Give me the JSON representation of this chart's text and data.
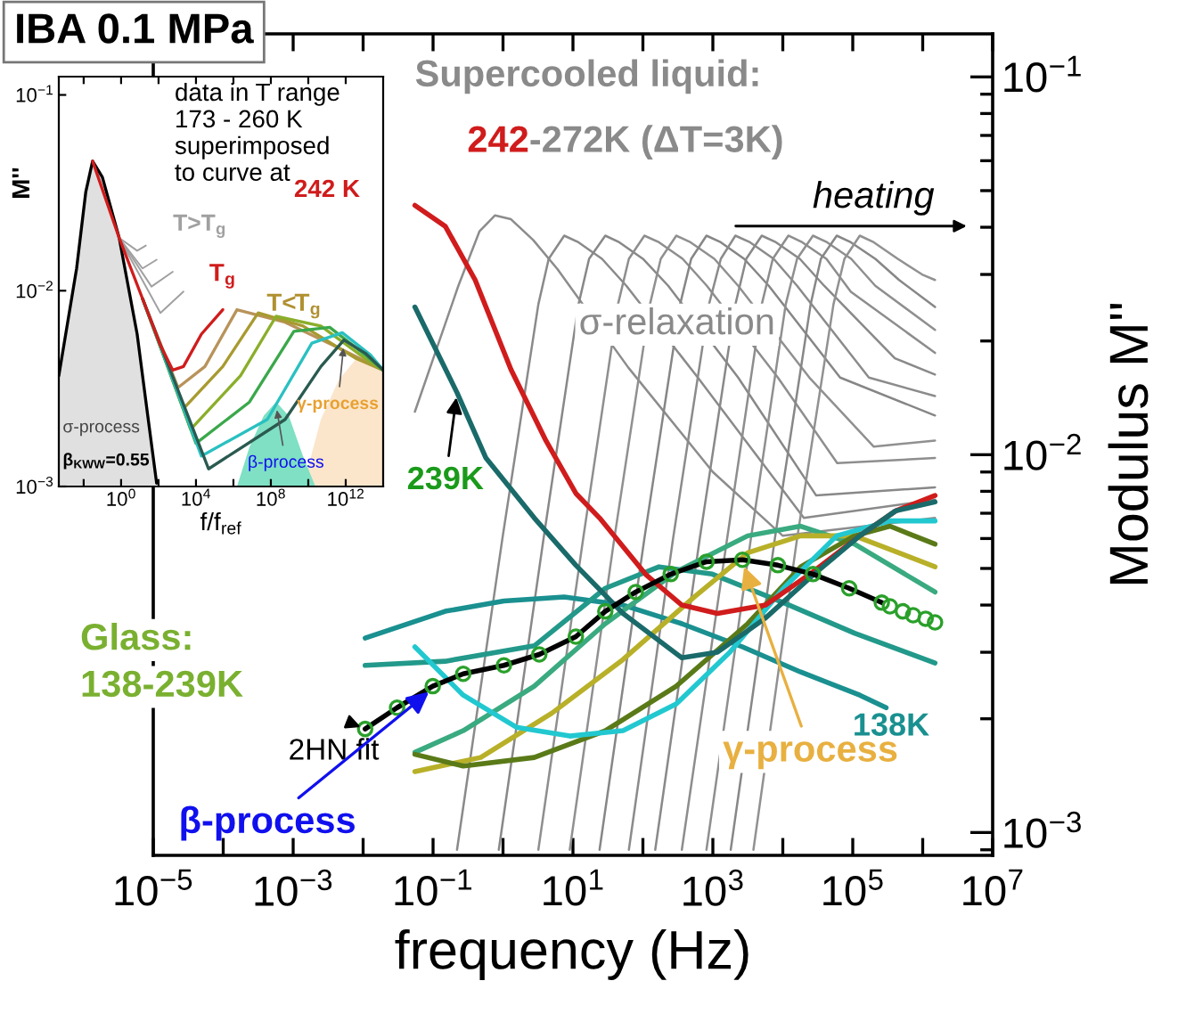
{
  "chart_data": [
    {
      "type": "line",
      "title": "IBA 0.1 MPa",
      "xlabel": "frequency (Hz)",
      "ylabel": "Modulus M''",
      "log": "xy",
      "grid": false,
      "legend": false,
      "xlim": [
        1e-05,
        10000000.0
      ],
      "ylim": [
        0.00087,
        0.13
      ],
      "xticks": [
        {
          "value": 1e-05,
          "label": "10$^{−5}$"
        },
        {
          "value": 0.0001,
          "label": null
        },
        {
          "value": 0.001,
          "label": "10$^{−3}$"
        },
        {
          "value": 0.01,
          "label": null
        },
        {
          "value": 0.1,
          "label": "10$^{−1}$"
        },
        {
          "value": 1,
          "label": null
        },
        {
          "value": 10,
          "label": "10$^{1}$"
        },
        {
          "value": 100,
          "label": null
        },
        {
          "value": 1000,
          "label": "10$^{3}$"
        },
        {
          "value": 10000.0,
          "label": null
        },
        {
          "value": 100000.0,
          "label": "10$^{5}$"
        },
        {
          "value": 1000000.0,
          "label": null
        },
        {
          "value": 10000000.0,
          "label": "10$^{7}$"
        }
      ],
      "yticks": [
        {
          "value": 0.001,
          "label": "10$^{−3}$"
        },
        {
          "value": 0.01,
          "label": "10$^{−2}$"
        },
        {
          "value": 0.1,
          "label": "10$^{−1}$"
        }
      ],
      "annotations": [
        "Supercooled liquid:",
        "242",
        "-272K (ΔT=3K)",
        "heating",
        "σ-relaxation",
        {
          "text": "239K",
          "x": 0.22,
          "y": 0.0146
        },
        "Glass:",
        "138-239K",
        {
          "text": "2HN fit",
          "x": 0.0107,
          "y": 0.00188
        },
        {
          "text": "β-process",
          "x": 0.099,
          "y": 0.0024
        },
        {
          "text": "γ-process",
          "x": 2650,
          "y": 0.0052
        },
        "138K"
      ],
      "series": [
        {
          "color": "#8c8c8c",
          "x": [
            0.055,
            0.23,
            0.46,
            0.77,
            1.3,
            2.7,
            6,
            62,
            1000,
            10000,
            1500000.0
          ],
          "values": [
            0.013,
            0.028,
            0.039,
            0.043,
            0.042,
            0.037,
            0.031,
            0.017,
            0.009,
            0.0061,
            0.0068
          ]
        },
        {
          "color": "#8a8a8a",
          "x": [
            0.22,
            0.98,
            3.2,
            4.5,
            7.5,
            12,
            26,
            58,
            610,
            20000,
            1500000.0
          ],
          "values": [
            0.0009,
            0.006,
            0.025,
            0.033,
            0.038,
            0.0365,
            0.033,
            0.028,
            0.016,
            0.0068,
            0.0076
          ]
        },
        {
          "color": "#888888",
          "x": [
            0.87,
            3.8,
            12,
            17,
            29,
            46,
            100,
            230,
            2300,
            30000,
            1500000.0
          ],
          "values": [
            0.0009,
            0.006,
            0.025,
            0.033,
            0.038,
            0.0365,
            0.033,
            0.028,
            0.016,
            0.0078,
            0.0082
          ]
        },
        {
          "color": "#8e8e8e",
          "x": [
            3.2,
            14,
            44,
            63,
            105,
            170,
            370,
            820,
            8500,
            60000,
            1500000.0
          ],
          "values": [
            0.0009,
            0.006,
            0.025,
            0.033,
            0.038,
            0.0365,
            0.033,
            0.028,
            0.016,
            0.0095,
            0.0098
          ]
        },
        {
          "color": "#909090",
          "x": [
            9,
            39,
            126,
            180,
            300,
            480,
            1050,
            2300,
            24000,
            200000,
            1500000.0
          ],
          "values": [
            0.0009,
            0.006,
            0.025,
            0.033,
            0.038,
            0.0365,
            0.033,
            0.028,
            0.016,
            0.0105,
            0.0109
          ]
        },
        {
          "color": "#868686",
          "x": [
            24,
            105,
            340,
            490,
            810,
            1300,
            2800,
            6300,
            66000,
            1500000.0
          ],
          "values": [
            0.0009,
            0.006,
            0.025,
            0.033,
            0.038,
            0.0365,
            0.033,
            0.028,
            0.016,
            0.0127
          ]
        },
        {
          "color": "#8b8b8b",
          "x": [
            63,
            270,
            880,
            1300,
            2100,
            3400,
            7400,
            16000,
            170000,
            1500000.0
          ],
          "values": [
            0.0009,
            0.006,
            0.025,
            0.033,
            0.038,
            0.0365,
            0.033,
            0.028,
            0.016,
            0.0143
          ]
        },
        {
          "color": "#898989",
          "x": [
            150,
            650,
            2100,
            3000,
            5000,
            8000,
            17500,
            39000,
            400000,
            1500000.0
          ],
          "values": [
            0.0009,
            0.006,
            0.025,
            0.033,
            0.038,
            0.0365,
            0.033,
            0.028,
            0.018,
            0.0163
          ]
        },
        {
          "color": "#8d8d8d",
          "x": [
            360,
            1600,
            5000,
            7200,
            12000,
            19000,
            42000,
            94000,
            1500000.0
          ],
          "values": [
            0.0009,
            0.006,
            0.025,
            0.033,
            0.038,
            0.0365,
            0.033,
            0.027,
            0.0186
          ]
        },
        {
          "color": "#8f8f8f",
          "x": [
            810,
            3500,
            11000,
            16000,
            27000,
            43000,
            95000,
            210000,
            1500000.0
          ],
          "values": [
            0.0009,
            0.006,
            0.025,
            0.033,
            0.038,
            0.0365,
            0.033,
            0.028,
            0.0214
          ]
        },
        {
          "color": "#878787",
          "x": [
            1800,
            7700,
            25000,
            35000,
            59000,
            94000,
            210000,
            460000,
            1500000.0
          ],
          "values": [
            0.0009,
            0.006,
            0.025,
            0.033,
            0.038,
            0.0365,
            0.033,
            0.029,
            0.0246
          ]
        },
        {
          "color": "#919191",
          "x": [
            3800,
            16000,
            53000,
            76000,
            126000,
            200000,
            440000,
            980000,
            1500000.0
          ],
          "values": [
            0.0009,
            0.006,
            0.025,
            0.033,
            0.038,
            0.0365,
            0.033,
            0.03,
            0.029
          ]
        },
        {
          "color": "#1a9090",
          "x": [
            0.0107,
            0.149,
            1.03,
            7.5,
            52,
            360,
            2650,
            18000,
            126000,
            300000
          ],
          "values": [
            0.00327,
            0.00385,
            0.0041,
            0.0042,
            0.004,
            0.00357,
            0.0031,
            0.00266,
            0.00231,
            0.00214
          ]
        },
        {
          "color": "#22998a",
          "x": [
            0.0107,
            0.149,
            2.8,
            29,
            170,
            980,
            10200,
            106000,
            1500000.0
          ],
          "values": [
            0.00277,
            0.00284,
            0.00312,
            0.00443,
            0.00505,
            0.00483,
            0.00406,
            0.00337,
            0.00281
          ]
        },
        {
          "color": "#3aaa80",
          "x": [
            0.055,
            0.27,
            2.8,
            29,
            300,
            3150,
            18000,
            106000,
            1500000.0
          ],
          "values": [
            0.00163,
            0.00186,
            0.00244,
            0.00357,
            0.0049,
            0.0061,
            0.00647,
            0.0058,
            0.00433
          ]
        },
        {
          "color": "#b8b028",
          "x": [
            0.055,
            0.48,
            5.0,
            52,
            540,
            3150,
            18000,
            106000,
            1500000.0
          ],
          "values": [
            0.00145,
            0.00158,
            0.00207,
            0.00287,
            0.0042,
            0.0055,
            0.0061,
            0.0061,
            0.00505
          ]
        },
        {
          "color": "#5a7a18",
          "x": [
            0.055,
            0.27,
            2.8,
            29,
            300,
            3150,
            18000,
            106000,
            340000,
            1500000.0
          ],
          "values": [
            0.00161,
            0.0015,
            0.00158,
            0.00186,
            0.00244,
            0.00357,
            0.00505,
            0.0061,
            0.00647,
            0.0058
          ]
        },
        {
          "color": "#22c8d0",
          "x": [
            0.055,
            0.27,
            1.55,
            9.0,
            52,
            300,
            1750,
            10200,
            59000,
            340000,
            1500000.0
          ],
          "values": [
            0.0031,
            0.00231,
            0.0019,
            0.0018,
            0.00186,
            0.00219,
            0.003,
            0.00443,
            0.0061,
            0.00668,
            0.00668
          ]
        },
        {
          "color": "#d01c1c",
          "x": [
            0.055,
            0.15,
            0.4,
            1.3,
            4.1,
            11,
            24,
            112,
            360,
            1160,
            5700,
            27000,
            126000,
            410000,
            1500000.0
          ],
          "values": [
            0.0457,
            0.0402,
            0.029,
            0.0168,
            0.0109,
            0.0079,
            0.0068,
            0.0048,
            0.004,
            0.0038,
            0.004,
            0.0049,
            0.0061,
            0.0071,
            0.0078
          ]
        },
        {
          "color": "#1a6a6a",
          "x": [
            0.055,
            0.22,
            0.57,
            2.8,
            11,
            52,
            360,
            1160,
            5700,
            27000,
            126000,
            410000,
            1500000.0
          ],
          "values": [
            0.0246,
            0.0146,
            0.0098,
            0.0068,
            0.0051,
            0.0038,
            0.0029,
            0.003,
            0.0037,
            0.0048,
            0.0061,
            0.0071,
            0.0075
          ]
        },
        {
          "type": "scatter",
          "marker": "circle",
          "color": "#2aa02a",
          "x": [
            0.0107,
            0.0306,
            0.099,
            0.27,
            1.03,
            3.3,
            11,
            29,
            79,
            250,
            810,
            2650,
            8500,
            27000,
            89000,
            260000,
            340000,
            520000,
            730000,
            1100000.0,
            1500000.0
          ],
          "values": [
            0.00188,
            0.00214,
            0.00244,
            0.00263,
            0.00277,
            0.00296,
            0.0033,
            0.00385,
            0.00433,
            0.00483,
            0.00521,
            0.00527,
            0.0051,
            0.00483,
            0.00443,
            0.00406,
            0.00397,
            0.00385,
            0.00376,
            0.00368,
            0.0036
          ]
        },
        {
          "color": "#000000",
          "x": [
            0.0107,
            0.0306,
            0.099,
            0.27,
            1.03,
            3.3,
            11,
            29,
            79,
            250,
            810,
            2650,
            8500,
            27000,
            89000,
            260000
          ],
          "values": [
            0.00188,
            0.00214,
            0.00244,
            0.00263,
            0.00277,
            0.00296,
            0.0033,
            0.00385,
            0.00433,
            0.00483,
            0.00521,
            0.00527,
            0.0051,
            0.00483,
            0.00443,
            0.00406
          ]
        }
      ]
    },
    {
      "type": "line",
      "xlabel": "f/f$_{ref}$",
      "ylabel": "M''",
      "log": "xy",
      "grid": false,
      "legend": false,
      "xlim": [
        0.00047,
        100000000000000.0
      ],
      "ylim": [
        0.001,
        0.124
      ],
      "xticks": [
        {
          "value": 0.01,
          "label": null
        },
        {
          "value": 1,
          "label": "10$^{0}$"
        },
        {
          "value": 100,
          "label": null
        },
        {
          "value": 10000.0,
          "label": "10$^{4}$"
        },
        {
          "value": 1000000.0,
          "label": null
        },
        {
          "value": 100000000.0,
          "label": "10$^{8}$"
        },
        {
          "value": 10000000000.0,
          "label": null
        },
        {
          "value": 1000000000000.0,
          "label": "10$^{12}$"
        }
      ],
      "yticks": [
        {
          "value": 0.001,
          "label": "10$^{−3}$"
        },
        {
          "value": 0.01,
          "label": "10$^{−2}$"
        },
        {
          "value": 0.1,
          "label": "10$^{−1}$"
        }
      ],
      "annotations": [
        "data in T range\n173 - 260 K\nsuperimposed\nto curve at",
        "242 K",
        "T>T$_{g}$",
        "T$_{g}$",
        "T<T$_{g}$",
        "σ-process",
        "β$_{KWW}$=0.55",
        {
          "text": "β-process",
          "x": 190000000.0,
          "y": 0.0026
        },
        {
          "text": "γ-process",
          "x": 800000000000.0,
          "y": 0.0054
        }
      ],
      "series": [
        {
          "type": "area",
          "color": "#fbe6cc",
          "x": [
            5200000000.0,
            47000000000.0,
            420000000000.0,
            3700000000000.0,
            100000000000000.0
          ],
          "values": [
            0.001,
            0.0022,
            0.0035,
            0.0045,
            0.00393
          ]
        },
        {
          "type": "area",
          "color": "#7fe0c4",
          "x": [
            1550000.0,
            7200000.0,
            42000000.0,
            190000000.0,
            900000000.0,
            5200000000.0,
            24000000000.0
          ],
          "values": [
            0.001,
            0.00159,
            0.0023,
            0.0027,
            0.0023,
            0.00143,
            0.001
          ]
        },
        {
          "color": "#000000",
          "x": [
            0.00047,
            0.0042,
            0.013,
            0.03,
            0.1,
            0.79,
            7.2,
            27,
            79
          ],
          "values": [
            0.00368,
            0.013,
            0.032,
            0.0459,
            0.038,
            0.0186,
            0.006,
            0.00227,
            0.00104
          ],
          "lower": [
            0.001,
            0.001,
            0.001,
            0.001,
            0.001,
            0.001,
            0.001,
            0.001,
            0.001
          ],
          "upper": [
            0.00368,
            0.013,
            0.032,
            0.0459,
            0.038,
            0.0186,
            0.006,
            0.00227,
            0.00104
          ]
        },
        {
          "color": "#a0a0a0",
          "x": [
            0.79,
            7.2,
            21
          ],
          "values": [
            0.0186,
            0.016,
            0.017
          ]
        },
        {
          "color": "#a0a0a0",
          "x": [
            0.79,
            14,
            79
          ],
          "values": [
            0.0186,
            0.013,
            0.0144
          ]
        },
        {
          "color": "#a0a0a0",
          "x": [
            0.79,
            42,
            575
          ],
          "values": [
            0.0186,
            0.0105,
            0.0125
          ]
        },
        {
          "color": "#a0a0a0",
          "x": [
            0.79,
            126,
            2140
          ],
          "values": [
            0.0186,
            0.0077,
            0.0099
          ]
        },
        {
          "color": "#b8935a",
          "x": [
            14,
            1100,
            30000,
            1550000.0,
            580000000.0,
            420000000000.0,
            100000000000000.0
          ],
          "values": [
            0.0091,
            0.0032,
            0.0041,
            0.008,
            0.0069,
            0.0051,
            0.00393
          ]
        },
        {
          "color": "#a89a30",
          "x": [
            14,
            2140,
            270000,
            21000000.0,
            5200000000.0,
            3700000000000.0,
            100000000000000.0
          ],
          "values": [
            0.0091,
            0.0025,
            0.0041,
            0.0077,
            0.0066,
            0.0045,
            0.00393
          ]
        },
        {
          "color": "#8aae2a",
          "x": [
            14,
            5200,
            2400000.0,
            190000000.0,
            47000000000.0,
            11000000000000.0,
            100000000000000.0
          ],
          "values": [
            0.0091,
            0.00196,
            0.00368,
            0.0074,
            0.0066,
            0.0045,
            0.00393
          ]
        },
        {
          "color": "#3aa84a",
          "x": [
            14,
            10000,
            7200000.0,
            1700000000.0,
            140000000000.0,
            11000000000000.0,
            100000000000000.0
          ],
          "values": [
            0.0091,
            0.00166,
            0.0027,
            0.0062,
            0.0065,
            0.0047,
            0.00393
          ]
        },
        {
          "color": "#2ac0c0",
          "x": [
            14,
            19500,
            65000000.0,
            15500000000.0,
            650000000000.0,
            21000000000000.0,
            100000000000000.0
          ],
          "values": [
            0.0091,
            0.00143,
            0.0022,
            0.0054,
            0.0061,
            0.0047,
            0.00393
          ]
        },
        {
          "color": "#2a5a50",
          "x": [
            14,
            47000,
            580000000.0,
            47000000000.0,
            800000000000.0,
            11000000000000.0,
            100000000000000.0
          ],
          "values": [
            0.0091,
            0.00123,
            0.0022,
            0.0041,
            0.0056,
            0.0048,
            0.00393
          ]
        },
        {
          "color": "#d01c1c",
          "x": [
            0.03,
            0.79,
            14,
            126,
            575,
            2140,
            19500,
            270000
          ],
          "values": [
            0.0459,
            0.0186,
            0.0091,
            0.00526,
            0.00393,
            0.0041,
            0.006,
            0.008
          ]
        }
      ]
    }
  ]
}
